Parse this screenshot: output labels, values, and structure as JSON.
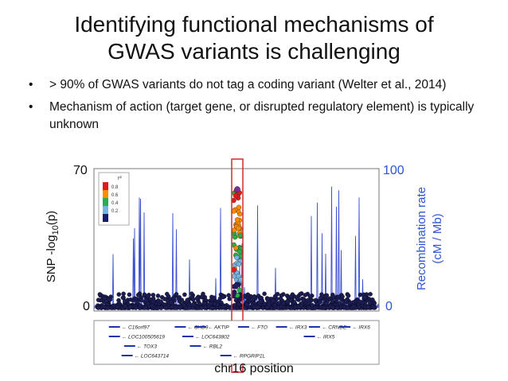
{
  "slide": {
    "title_line1": "Identifying functional mechanisms of",
    "title_line2": "GWAS variants is challenging",
    "bullets": [
      "> 90% of GWAS variants do not tag a coding variant (Welter et al., 2014)",
      "Mechanism of action (target gene, or disrupted regulatory element) is typically unknown"
    ]
  },
  "chart_data": {
    "type": "scatter",
    "xlabel": "chr16 position",
    "ylabel_left_prefix": "SNP -log",
    "ylabel_left_sub": "10",
    "ylabel_left_suffix": "(p)",
    "ylabel_right_line1": "Recombination rate",
    "ylabel_right_line2": "(cM / Mb)",
    "y_left_range": [
      0,
      70
    ],
    "y_right_range": [
      0,
      100
    ],
    "y_left_ticks": [
      "70",
      "0"
    ],
    "y_right_ticks": [
      "100",
      "0"
    ],
    "legend": {
      "title": "r²",
      "entries": [
        {
          "label": "0.8",
          "color": "#e31a1c"
        },
        {
          "label": "0.6",
          "color": "#ff8c00"
        },
        {
          "label": "0.4",
          "color": "#22b14c"
        },
        {
          "label": "0.2",
          "color": "#74b4e6"
        },
        {
          "label": "",
          "color": "#1a1a6e"
        }
      ]
    },
    "lead_snp_region": "FTO",
    "genes": [
      {
        "name": "C16orf97",
        "row": 0,
        "pos": 0.04
      },
      {
        "name": "CHD9",
        "row": 0,
        "pos": 0.3
      },
      {
        "name": "AKTIP",
        "row": 0,
        "pos": 0.38
      },
      {
        "name": "FTO",
        "row": 0,
        "pos": 0.55
      },
      {
        "name": "IRX3",
        "row": 0,
        "pos": 0.7
      },
      {
        "name": "CRNDE",
        "row": 0,
        "pos": 0.83
      },
      {
        "name": "IRX6",
        "row": 0,
        "pos": 0.95
      },
      {
        "name": "LOC100505619",
        "row": 1,
        "pos": 0.04
      },
      {
        "name": "LOC643802",
        "row": 1,
        "pos": 0.33
      },
      {
        "name": "IRX5",
        "row": 1,
        "pos": 0.81
      },
      {
        "name": "TOX3",
        "row": 2,
        "pos": 0.1
      },
      {
        "name": "RBL2",
        "row": 2,
        "pos": 0.36
      },
      {
        "name": "LOC643714",
        "row": 3,
        "pos": 0.09
      },
      {
        "name": "RPGRIP1L",
        "row": 3,
        "pos": 0.48
      }
    ],
    "colors": {
      "recomb": "#3b4fd0",
      "box": "#d42a2a"
    }
  }
}
